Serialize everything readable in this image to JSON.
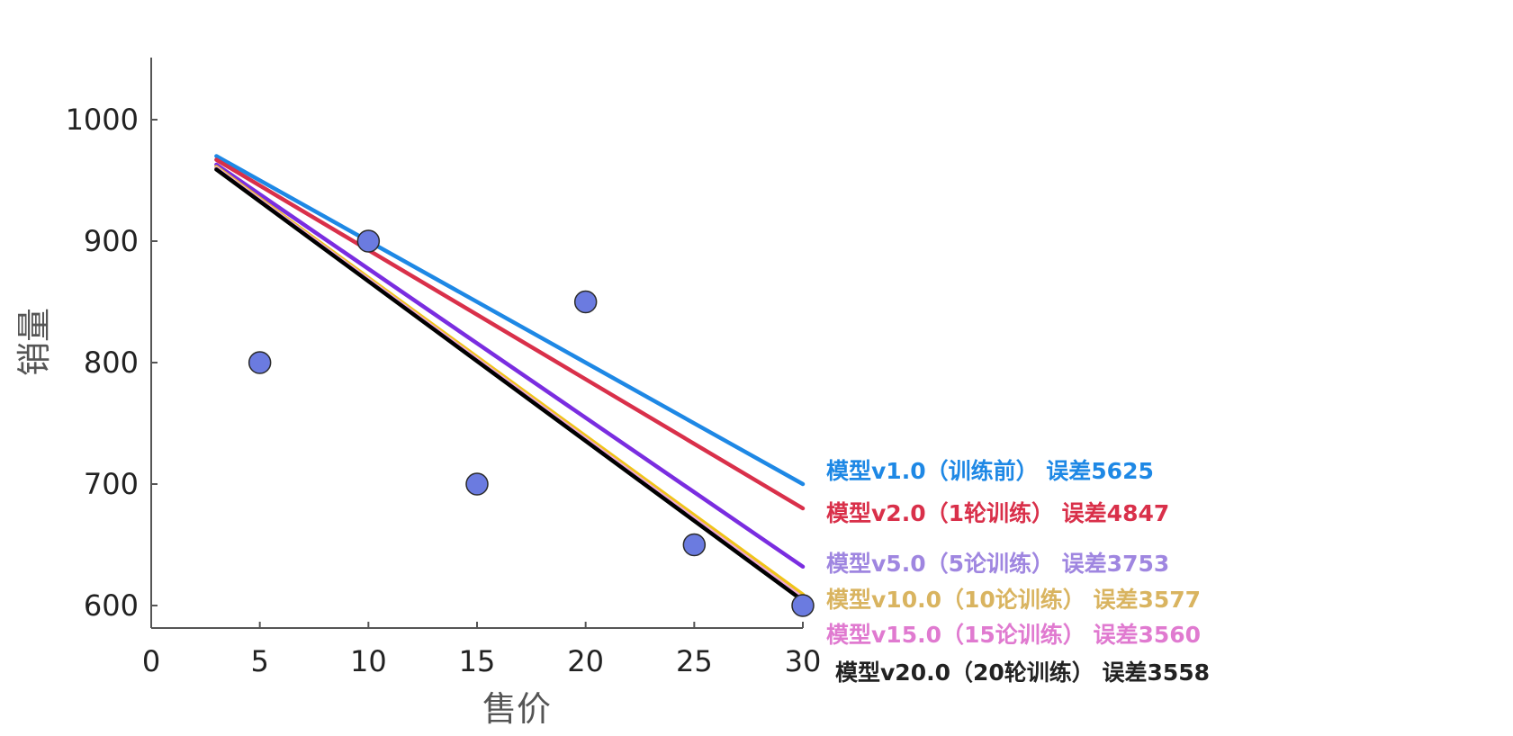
{
  "chart_data": {
    "type": "line",
    "title": "",
    "xlabel": "售价",
    "ylabel": "销量",
    "xlim": [
      0,
      30
    ],
    "ylim": [
      580,
      1050
    ],
    "x_ticks": [
      0,
      5,
      10,
      15,
      20,
      25,
      30
    ],
    "y_ticks": [
      600,
      700,
      800,
      900,
      1000
    ],
    "grid": false,
    "scatter": {
      "color": "#6b7be0",
      "points": [
        {
          "x": 5,
          "y": 800
        },
        {
          "x": 10,
          "y": 900
        },
        {
          "x": 15,
          "y": 700
        },
        {
          "x": 20,
          "y": 850
        },
        {
          "x": 25,
          "y": 650
        },
        {
          "x": 30,
          "y": 600
        }
      ]
    },
    "series": [
      {
        "label": "模型v1.0（训练前） 误差5625",
        "color": "#1e88e5",
        "x": [
          3,
          30
        ],
        "y": [
          970,
          700
        ],
        "label_color": "#1e88e5"
      },
      {
        "label": "模型v2.0（1轮训练） 误差4847",
        "color": "#d9304a",
        "x": [
          3,
          30
        ],
        "y": [
          967,
          680
        ],
        "label_color": "#d9304a"
      },
      {
        "label": "模型v5.0（5论训练） 误差3753",
        "color": "#7a2de0",
        "x": [
          3,
          30
        ],
        "y": [
          963,
          632
        ],
        "label_color": "#9f86e0"
      },
      {
        "label": "模型v10.0（10论训练） 误差3577",
        "color": "#f0c419",
        "x": [
          3,
          30
        ],
        "y": [
          961,
          609
        ],
        "label_color": "#d9b460"
      },
      {
        "label": "模型v15.0（15论训练） 误差3560",
        "color": "#f0a8d8",
        "x": [
          3,
          30
        ],
        "y": [
          960,
          606
        ],
        "label_color": "#e07ad0"
      },
      {
        "label": "模型v20.0（20轮训练） 误差3558",
        "color": "#000000",
        "x": [
          3,
          30
        ],
        "y": [
          959,
          604
        ],
        "label_color": "#222222"
      }
    ]
  }
}
